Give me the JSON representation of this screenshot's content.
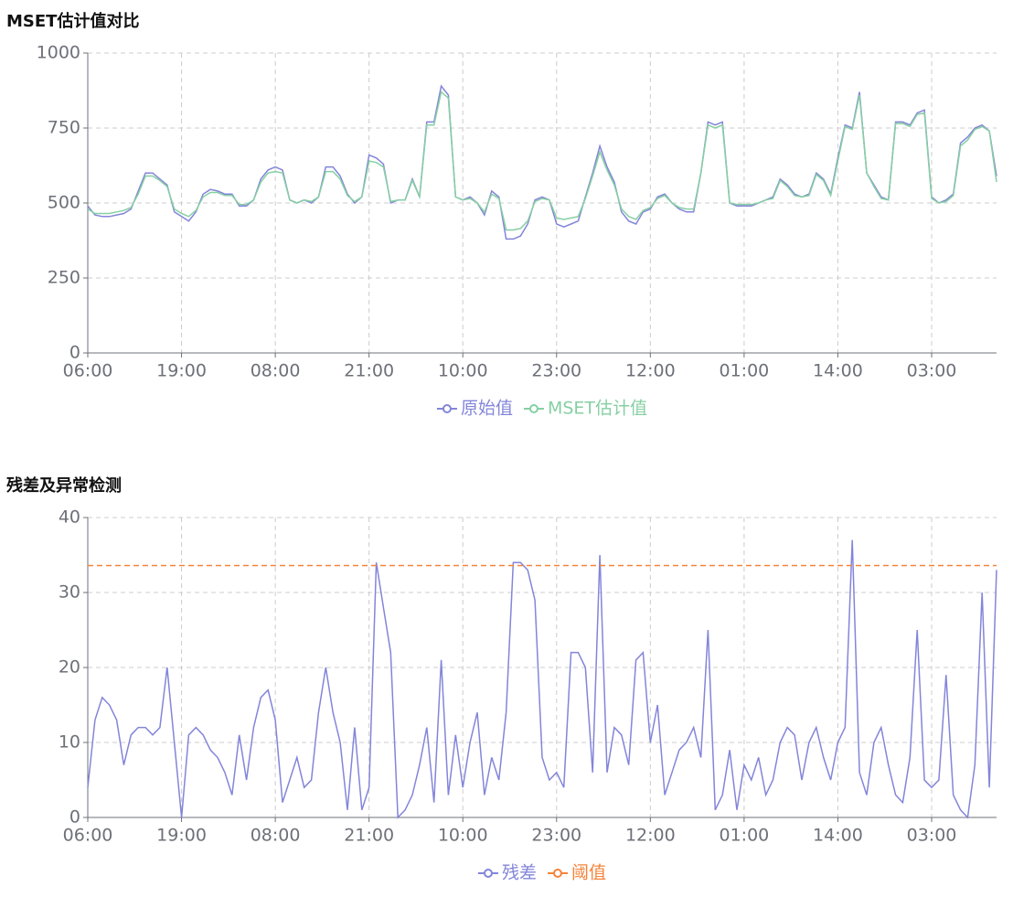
{
  "chart_data": [
    {
      "type": "line",
      "title": "MSET估计值对比",
      "categories": [
        "06:00",
        null,
        null,
        null,
        null,
        null,
        null,
        null,
        null,
        null,
        null,
        null,
        null,
        "19:00",
        null,
        null,
        null,
        null,
        null,
        null,
        null,
        null,
        null,
        null,
        null,
        null,
        "08:00",
        null,
        null,
        null,
        null,
        null,
        null,
        null,
        null,
        null,
        null,
        null,
        null,
        "21:00",
        null,
        null,
        null,
        null,
        null,
        null,
        null,
        null,
        null,
        null,
        null,
        null,
        "10:00",
        null,
        null,
        null,
        null,
        null,
        null,
        null,
        null,
        null,
        null,
        null,
        null,
        "23:00",
        null,
        null,
        null,
        null,
        null,
        null,
        null,
        null,
        null,
        null,
        null,
        null,
        "12:00",
        null,
        null,
        null,
        null,
        null,
        null,
        null,
        null,
        null,
        null,
        null,
        null,
        "01:00",
        null,
        null,
        null,
        null,
        null,
        null,
        null,
        null,
        null,
        null,
        null,
        null,
        "14:00",
        null,
        null,
        null,
        null,
        null,
        null,
        null,
        null,
        null,
        null,
        null,
        null,
        "03:00",
        null,
        null,
        null,
        null,
        null,
        null,
        null,
        null,
        null
      ],
      "series": [
        {
          "name": "原始值",
          "color": "#8385d9",
          "values": [
            490,
            460,
            455,
            455,
            460,
            465,
            480,
            540,
            600,
            600,
            580,
            560,
            470,
            455,
            440,
            470,
            530,
            545,
            540,
            530,
            530,
            490,
            490,
            510,
            580,
            610,
            620,
            610,
            510,
            500,
            510,
            500,
            520,
            620,
            620,
            590,
            530,
            500,
            520,
            660,
            650,
            630,
            500,
            510,
            510,
            580,
            520,
            770,
            770,
            890,
            860,
            520,
            510,
            520,
            500,
            460,
            540,
            520,
            380,
            380,
            390,
            430,
            510,
            520,
            510,
            430,
            420,
            430,
            440,
            520,
            600,
            690,
            620,
            570,
            470,
            440,
            430,
            470,
            480,
            520,
            530,
            500,
            480,
            470,
            470,
            600,
            770,
            760,
            770,
            500,
            490,
            490,
            490,
            500,
            510,
            520,
            580,
            560,
            530,
            520,
            530,
            600,
            580,
            530,
            650,
            760,
            750,
            870,
            600,
            560,
            520,
            510,
            770,
            770,
            760,
            800,
            810,
            520,
            500,
            510,
            530,
            700,
            720,
            750,
            760,
            740,
            590
          ]
        },
        {
          "name": "MSET估计值",
          "color": "#86cfa3",
          "values": [
            480,
            465,
            465,
            465,
            470,
            475,
            485,
            530,
            590,
            590,
            575,
            555,
            480,
            465,
            455,
            475,
            520,
            535,
            535,
            525,
            525,
            495,
            495,
            510,
            570,
            600,
            605,
            600,
            510,
            500,
            510,
            505,
            520,
            605,
            605,
            580,
            525,
            505,
            520,
            640,
            635,
            620,
            505,
            510,
            510,
            575,
            520,
            760,
            760,
            870,
            850,
            520,
            510,
            515,
            500,
            470,
            530,
            515,
            410,
            410,
            415,
            440,
            505,
            515,
            510,
            450,
            445,
            450,
            455,
            515,
            590,
            670,
            610,
            560,
            480,
            455,
            445,
            475,
            485,
            515,
            525,
            500,
            485,
            480,
            480,
            600,
            760,
            750,
            760,
            500,
            495,
            495,
            495,
            500,
            510,
            515,
            575,
            555,
            525,
            520,
            525,
            595,
            575,
            525,
            640,
            755,
            745,
            860,
            600,
            555,
            515,
            510,
            765,
            765,
            755,
            795,
            800,
            515,
            500,
            505,
            525,
            690,
            710,
            745,
            755,
            740,
            570
          ]
        }
      ],
      "ylim": [
        0,
        1000
      ],
      "yticks": [
        0,
        250,
        500,
        750,
        1000
      ],
      "grid": true
    },
    {
      "type": "line",
      "title": "残差及异常检测",
      "categories": [
        "06:00",
        null,
        null,
        null,
        null,
        null,
        null,
        null,
        null,
        null,
        null,
        null,
        null,
        "19:00",
        null,
        null,
        null,
        null,
        null,
        null,
        null,
        null,
        null,
        null,
        null,
        null,
        "08:00",
        null,
        null,
        null,
        null,
        null,
        null,
        null,
        null,
        null,
        null,
        null,
        null,
        "21:00",
        null,
        null,
        null,
        null,
        null,
        null,
        null,
        null,
        null,
        null,
        null,
        null,
        "10:00",
        null,
        null,
        null,
        null,
        null,
        null,
        null,
        null,
        null,
        null,
        null,
        null,
        "23:00",
        null,
        null,
        null,
        null,
        null,
        null,
        null,
        null,
        null,
        null,
        null,
        null,
        "12:00",
        null,
        null,
        null,
        null,
        null,
        null,
        null,
        null,
        null,
        null,
        null,
        null,
        "01:00",
        null,
        null,
        null,
        null,
        null,
        null,
        null,
        null,
        null,
        null,
        null,
        null,
        "14:00",
        null,
        null,
        null,
        null,
        null,
        null,
        null,
        null,
        null,
        null,
        null,
        null,
        "03:00",
        null,
        null,
        null,
        null,
        null,
        null,
        null,
        null,
        null
      ],
      "series": [
        {
          "name": "残差",
          "color": "#8385d9",
          "values": [
            4,
            13,
            16,
            15,
            13,
            7,
            11,
            12,
            12,
            11,
            12,
            20,
            10,
            0,
            11,
            12,
            11,
            9,
            8,
            6,
            3,
            11,
            5,
            12,
            16,
            17,
            13,
            2,
            5,
            8,
            4,
            5,
            14,
            20,
            14,
            10,
            1,
            12,
            1,
            4,
            34,
            28,
            22,
            0,
            1,
            3,
            7,
            12,
            2,
            21,
            3,
            11,
            4,
            10,
            14,
            3,
            8,
            5,
            14,
            34,
            34,
            33,
            29,
            8,
            5,
            6,
            4,
            22,
            22,
            20,
            6,
            35,
            6,
            12,
            11,
            7,
            21,
            22,
            10,
            15,
            3,
            6,
            9,
            10,
            12,
            8,
            25,
            1,
            3,
            9,
            1,
            7,
            5,
            8,
            3,
            5,
            10,
            12,
            11,
            5,
            10,
            12,
            8,
            5,
            10,
            12,
            37,
            6,
            3,
            10,
            12,
            7,
            3,
            2,
            8,
            25,
            5,
            4,
            5,
            19,
            3,
            1,
            0,
            7,
            30,
            4,
            33
          ]
        },
        {
          "name": "阈值",
          "color": "#f5843a",
          "value": 33.6,
          "dashed": true
        }
      ],
      "ylim": [
        0,
        40
      ],
      "yticks": [
        0,
        10,
        20,
        30,
        40
      ],
      "grid": true
    }
  ]
}
